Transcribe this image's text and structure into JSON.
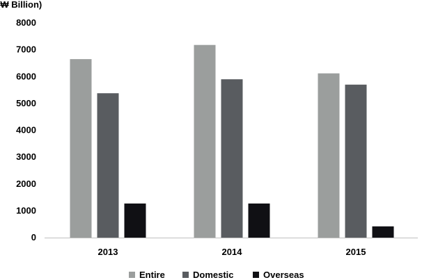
{
  "chart_data": {
    "type": "bar",
    "title": "",
    "unit_label": "(₩ Billion)",
    "xlabel": "",
    "ylabel": "",
    "categories": [
      "2013",
      "2014",
      "2015"
    ],
    "series": [
      {
        "name": "Entire",
        "values": [
          6650,
          7180,
          6120
        ],
        "color": "#9b9e9d"
      },
      {
        "name": "Domestic",
        "values": [
          5380,
          5900,
          5700
        ],
        "color": "#595c60"
      },
      {
        "name": "Overseas",
        "values": [
          1270,
          1270,
          420
        ],
        "color": "#101014"
      }
    ],
    "ylim": [
      0,
      8000
    ],
    "yticks": [
      0,
      1000,
      2000,
      3000,
      4000,
      5000,
      6000,
      7000,
      8000
    ],
    "grid": false,
    "legend_position": "bottom-center"
  }
}
